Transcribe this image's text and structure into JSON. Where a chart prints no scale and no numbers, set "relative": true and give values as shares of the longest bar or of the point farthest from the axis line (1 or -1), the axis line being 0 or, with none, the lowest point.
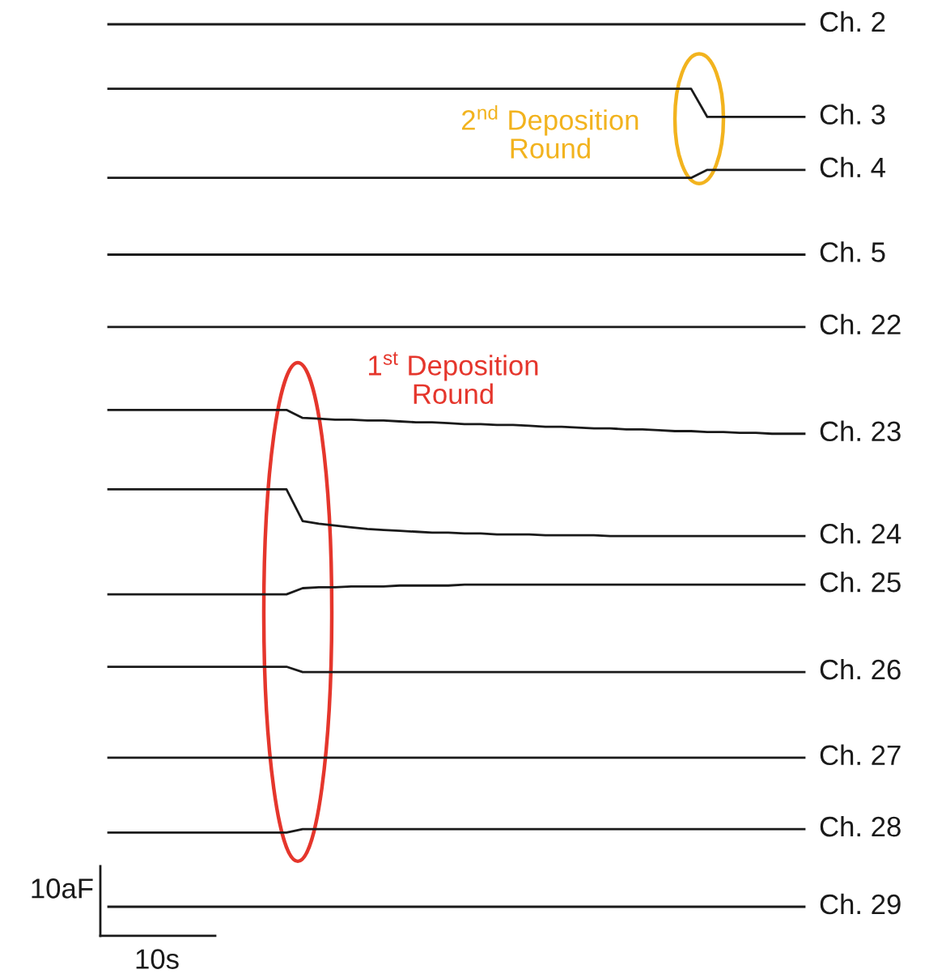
{
  "chart_data": {
    "type": "line",
    "relative": true,
    "marker": "none",
    "line_style": "solid",
    "categories": [
      null,
      null,
      null,
      null,
      null,
      null,
      null,
      null,
      null,
      null,
      null,
      null,
      null,
      null,
      null,
      null,
      null,
      null,
      null,
      null,
      null,
      null,
      null,
      null,
      null,
      null,
      null,
      null,
      null,
      null,
      null,
      null,
      null,
      null,
      null,
      null,
      null,
      null,
      null,
      null,
      null,
      null,
      null,
      null
    ],
    "annotations": [
      "2$^{nd}$ Deposition\nRound",
      "1$^{st}$ Deposition\nRound",
      "10aF",
      "10s"
    ],
    "series": [
      {
        "name": "Ch. 2",
        "color": "#1a1a1a",
        "values": [
          1,
          1,
          1,
          1,
          1,
          1,
          1,
          1,
          1,
          1,
          1,
          1,
          1,
          1,
          1,
          1,
          1,
          1,
          1,
          1,
          1,
          1,
          1,
          1,
          1,
          1,
          1,
          1,
          1,
          1,
          1,
          1,
          1,
          1,
          1,
          1,
          1,
          1,
          1,
          1,
          1,
          1,
          1,
          1
        ]
      },
      {
        "name": "Ch. 3",
        "color": "#1a1a1a",
        "values": [
          0.927,
          0.927,
          0.927,
          0.927,
          0.927,
          0.927,
          0.927,
          0.927,
          0.927,
          0.927,
          0.927,
          0.927,
          0.927,
          0.927,
          0.927,
          0.927,
          0.927,
          0.927,
          0.927,
          0.927,
          0.927,
          0.927,
          0.927,
          0.927,
          0.927,
          0.927,
          0.927,
          0.927,
          0.927,
          0.927,
          0.927,
          0.927,
          0.927,
          0.927,
          0.927,
          0.927,
          0.927,
          0.895,
          0.895,
          0.895,
          0.895,
          0.895,
          0.895,
          0.895
        ]
      },
      {
        "name": "Ch. 4",
        "color": "#1a1a1a",
        "values": [
          0.826,
          0.826,
          0.826,
          0.826,
          0.826,
          0.826,
          0.826,
          0.826,
          0.826,
          0.826,
          0.826,
          0.826,
          0.826,
          0.826,
          0.826,
          0.826,
          0.826,
          0.826,
          0.826,
          0.826,
          0.826,
          0.826,
          0.826,
          0.826,
          0.826,
          0.826,
          0.826,
          0.826,
          0.826,
          0.826,
          0.826,
          0.826,
          0.826,
          0.826,
          0.826,
          0.826,
          0.826,
          0.835,
          0.835,
          0.835,
          0.835,
          0.835,
          0.835,
          0.835
        ]
      },
      {
        "name": "Ch. 5",
        "color": "#1a1a1a",
        "values": [
          0.739,
          0.739,
          0.739,
          0.739,
          0.739,
          0.739,
          0.739,
          0.739,
          0.739,
          0.739,
          0.739,
          0.739,
          0.739,
          0.739,
          0.739,
          0.739,
          0.739,
          0.739,
          0.739,
          0.739,
          0.739,
          0.739,
          0.739,
          0.739,
          0.739,
          0.739,
          0.739,
          0.739,
          0.739,
          0.739,
          0.739,
          0.739,
          0.739,
          0.739,
          0.739,
          0.739,
          0.739,
          0.739,
          0.739,
          0.739,
          0.739,
          0.739,
          0.739,
          0.739
        ]
      },
      {
        "name": "Ch. 22",
        "color": "#1a1a1a",
        "values": [
          0.657,
          0.657,
          0.657,
          0.657,
          0.657,
          0.657,
          0.657,
          0.657,
          0.657,
          0.657,
          0.657,
          0.657,
          0.657,
          0.657,
          0.657,
          0.657,
          0.657,
          0.657,
          0.657,
          0.657,
          0.657,
          0.657,
          0.657,
          0.657,
          0.657,
          0.657,
          0.657,
          0.657,
          0.657,
          0.657,
          0.657,
          0.657,
          0.657,
          0.657,
          0.657,
          0.657,
          0.657,
          0.657,
          0.657,
          0.657,
          0.657,
          0.657,
          0.657,
          0.657
        ]
      },
      {
        "name": "Ch. 23",
        "color": "#1a1a1a",
        "values": [
          0.563,
          0.563,
          0.563,
          0.563,
          0.563,
          0.563,
          0.563,
          0.563,
          0.563,
          0.563,
          0.563,
          0.563,
          0.554,
          0.553,
          0.552,
          0.552,
          0.551,
          0.551,
          0.55,
          0.549,
          0.549,
          0.548,
          0.547,
          0.547,
          0.546,
          0.546,
          0.545,
          0.544,
          0.544,
          0.543,
          0.542,
          0.542,
          0.541,
          0.541,
          0.54,
          0.539,
          0.539,
          0.538,
          0.538,
          0.537,
          0.537,
          0.536,
          0.536,
          0.536
        ]
      },
      {
        "name": "Ch. 24",
        "color": "#1a1a1a",
        "values": [
          0.473,
          0.473,
          0.473,
          0.473,
          0.473,
          0.473,
          0.473,
          0.473,
          0.473,
          0.473,
          0.473,
          0.473,
          0.437,
          0.434,
          0.432,
          0.43,
          0.428,
          0.427,
          0.426,
          0.425,
          0.424,
          0.424,
          0.423,
          0.423,
          0.422,
          0.422,
          0.422,
          0.421,
          0.421,
          0.421,
          0.421,
          0.42,
          0.42,
          0.42,
          0.42,
          0.42,
          0.42,
          0.42,
          0.42,
          0.42,
          0.42,
          0.42,
          0.42,
          0.42
        ]
      },
      {
        "name": "Ch. 25",
        "color": "#1a1a1a",
        "values": [
          0.354,
          0.354,
          0.354,
          0.354,
          0.354,
          0.354,
          0.354,
          0.354,
          0.354,
          0.354,
          0.354,
          0.354,
          0.361,
          0.362,
          0.362,
          0.363,
          0.363,
          0.363,
          0.364,
          0.364,
          0.364,
          0.364,
          0.365,
          0.365,
          0.365,
          0.365,
          0.365,
          0.365,
          0.365,
          0.365,
          0.365,
          0.365,
          0.365,
          0.365,
          0.365,
          0.365,
          0.365,
          0.365,
          0.365,
          0.365,
          0.365,
          0.365,
          0.365,
          0.365
        ]
      },
      {
        "name": "Ch. 26",
        "color": "#1a1a1a",
        "values": [
          0.272,
          0.272,
          0.272,
          0.272,
          0.272,
          0.272,
          0.272,
          0.272,
          0.272,
          0.272,
          0.272,
          0.272,
          0.266,
          0.266,
          0.266,
          0.266,
          0.266,
          0.266,
          0.266,
          0.266,
          0.266,
          0.266,
          0.266,
          0.266,
          0.266,
          0.266,
          0.266,
          0.266,
          0.266,
          0.266,
          0.266,
          0.266,
          0.266,
          0.266,
          0.266,
          0.266,
          0.266,
          0.266,
          0.266,
          0.266,
          0.266,
          0.266,
          0.266,
          0.266
        ]
      },
      {
        "name": "Ch. 27",
        "color": "#1a1a1a",
        "values": [
          0.169,
          0.169,
          0.169,
          0.169,
          0.169,
          0.169,
          0.169,
          0.169,
          0.169,
          0.169,
          0.169,
          0.169,
          0.169,
          0.169,
          0.169,
          0.169,
          0.169,
          0.169,
          0.169,
          0.169,
          0.169,
          0.169,
          0.169,
          0.169,
          0.169,
          0.169,
          0.169,
          0.169,
          0.169,
          0.169,
          0.169,
          0.169,
          0.169,
          0.169,
          0.169,
          0.169,
          0.169,
          0.169,
          0.169,
          0.169,
          0.169,
          0.169,
          0.169,
          0.169
        ]
      },
      {
        "name": "Ch. 28",
        "color": "#1a1a1a",
        "values": [
          0.084,
          0.084,
          0.084,
          0.084,
          0.084,
          0.084,
          0.084,
          0.084,
          0.084,
          0.084,
          0.084,
          0.084,
          0.088,
          0.088,
          0.088,
          0.088,
          0.088,
          0.088,
          0.088,
          0.088,
          0.088,
          0.088,
          0.088,
          0.088,
          0.088,
          0.088,
          0.088,
          0.088,
          0.088,
          0.088,
          0.088,
          0.088,
          0.088,
          0.088,
          0.088,
          0.088,
          0.088,
          0.088,
          0.088,
          0.088,
          0.088,
          0.088,
          0.088,
          0.088
        ]
      },
      {
        "name": "Ch. 29",
        "color": "#1a1a1a",
        "values": [
          0,
          0,
          0,
          0,
          0,
          0,
          0,
          0,
          0,
          0,
          0,
          0,
          0,
          0,
          0,
          0,
          0,
          0,
          0,
          0,
          0,
          0,
          0,
          0,
          0,
          0,
          0,
          0,
          0,
          0,
          0,
          0,
          0,
          0,
          0,
          0,
          0,
          0,
          0,
          0,
          0,
          0,
          0,
          0
        ]
      }
    ]
  }
}
